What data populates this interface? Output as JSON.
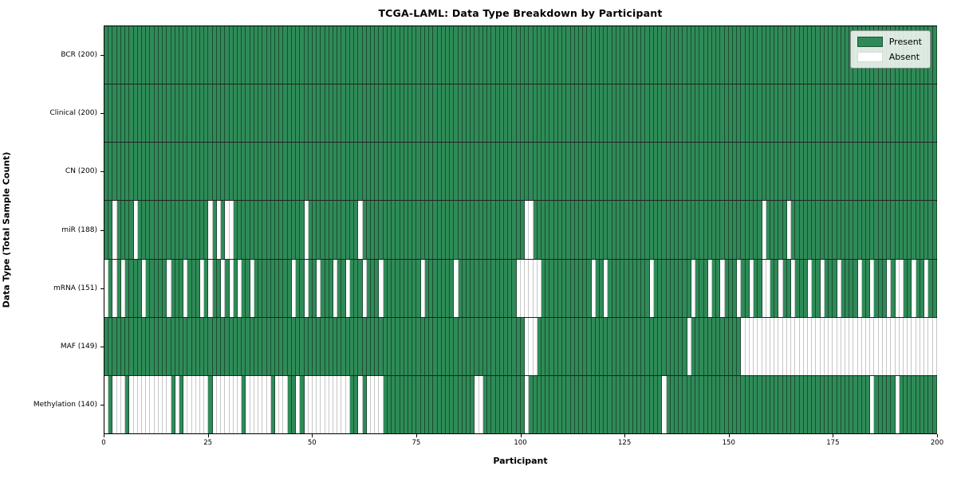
{
  "title": "TCGA-LAML: Data Type Breakdown by Participant",
  "chart_data": {
    "type": "heatmap",
    "title": "TCGA-LAML: Data Type Breakdown by Participant",
    "xlabel": "Participant",
    "ylabel": "Data Type (Total Sample Count)",
    "n_participants": 200,
    "x_ticks": [
      0,
      25,
      50,
      75,
      100,
      125,
      150,
      175,
      200
    ],
    "grid": false,
    "legend_position": "upper right",
    "legend": [
      {
        "label": "Present",
        "color": "#2e8b57"
      },
      {
        "label": "Absent",
        "color": "#ffffff"
      }
    ],
    "colors": {
      "present": "#2e8b57",
      "absent": "#ffffff",
      "present_edge": "#1d4b32",
      "absent_edge": "#c6c6c6",
      "row_separator": "#222222",
      "plot_border": "#000000"
    },
    "rows": [
      {
        "label": "BCR (200)",
        "data_type": "BCR",
        "present_count": 200,
        "absent": []
      },
      {
        "label": "Clinical (200)",
        "data_type": "Clinical",
        "present_count": 200,
        "absent": []
      },
      {
        "label": "CN (200)",
        "data_type": "CN",
        "present_count": 200,
        "absent": []
      },
      {
        "label": "miR (188)",
        "data_type": "miR",
        "present_count": 188,
        "absent": [
          2,
          7,
          25,
          27,
          29,
          30,
          48,
          61,
          101,
          102,
          158,
          164
        ]
      },
      {
        "label": "mRNA (151)",
        "data_type": "mRNA",
        "present_count": 151,
        "absent": [
          0,
          2,
          4,
          9,
          15,
          19,
          23,
          25,
          28,
          30,
          32,
          35,
          45,
          48,
          51,
          55,
          58,
          62,
          66,
          76,
          84,
          99,
          100,
          101,
          102,
          103,
          104,
          117,
          120,
          131,
          141,
          145,
          148,
          152,
          155,
          158,
          159,
          162,
          165,
          169,
          172,
          176,
          181,
          184,
          188,
          190,
          191,
          194,
          197
        ]
      },
      {
        "label": "MAF (149)",
        "data_type": "MAF",
        "present_count": 149,
        "absent": [
          101,
          102,
          103,
          140,
          153,
          154,
          155,
          156,
          157,
          158,
          159,
          160,
          161,
          162,
          163,
          164,
          165,
          166,
          167,
          168,
          169,
          170,
          171,
          172,
          173,
          174,
          175,
          176,
          177,
          178,
          179,
          180,
          181,
          182,
          183,
          184,
          185,
          186,
          187,
          188,
          189,
          190,
          191,
          192,
          193,
          194,
          195,
          196,
          197,
          198,
          199
        ]
      },
      {
        "label": "Methylation (140)",
        "data_type": "Methylation",
        "present_count": 140,
        "absent": [
          0,
          2,
          3,
          4,
          6,
          7,
          8,
          9,
          10,
          11,
          12,
          13,
          14,
          15,
          17,
          19,
          20,
          21,
          22,
          23,
          24,
          26,
          27,
          28,
          29,
          30,
          31,
          32,
          34,
          35,
          36,
          37,
          38,
          39,
          41,
          42,
          43,
          46,
          48,
          49,
          50,
          51,
          52,
          53,
          54,
          55,
          56,
          57,
          58,
          61,
          63,
          64,
          65,
          66,
          89,
          90,
          101,
          134,
          184,
          190
        ]
      }
    ]
  }
}
